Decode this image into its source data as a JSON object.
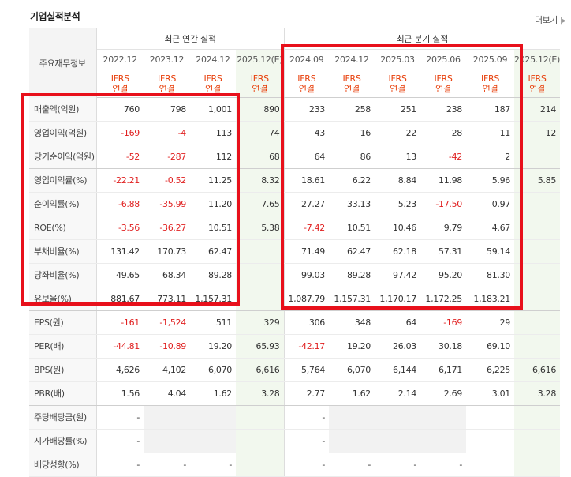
{
  "title": "기업실적분석",
  "more_label": "더보기",
  "more_arrow": "|▸",
  "corner_label": "주요재무정보",
  "group_labels": {
    "annual": "최근 연간 실적",
    "quarter": "최근 분기 실적"
  },
  "periods": [
    "2022.12",
    "2023.12",
    "2024.12",
    "2025.12(E)",
    "2024.09",
    "2024.12",
    "2025.03",
    "2025.06",
    "2025.09",
    "2025.12(E)"
  ],
  "ifrs": [
    "IFRS",
    "IFRS",
    "IFRS",
    "IFRS",
    "IFRS",
    "IFRS",
    "IFRS",
    "IFRS",
    "IFRS",
    "IFRS"
  ],
  "consol": [
    "연결",
    "연결",
    "연결",
    "연결",
    "연결",
    "연결",
    "연결",
    "연결",
    "연결",
    "연결"
  ],
  "rows": [
    {
      "label": "매출액(억원)",
      "cells": [
        "760",
        "798",
        "1,001",
        "890",
        "233",
        "258",
        "251",
        "238",
        "187",
        "214"
      ]
    },
    {
      "label": "영업이익(억원)",
      "cells": [
        "-169",
        "-4",
        "113",
        "74",
        "43",
        "16",
        "22",
        "28",
        "11",
        "12"
      ]
    },
    {
      "label": "당기순이익(억원)",
      "cells": [
        "-52",
        "-287",
        "112",
        "68",
        "64",
        "86",
        "13",
        "-42",
        "2",
        ""
      ]
    },
    {
      "label": "영업이익률(%)",
      "cells": [
        "-22.21",
        "-0.52",
        "11.25",
        "8.32",
        "18.61",
        "6.22",
        "8.84",
        "11.98",
        "5.96",
        "5.85"
      ]
    },
    {
      "label": "순이익률(%)",
      "cells": [
        "-6.88",
        "-35.99",
        "11.20",
        "7.65",
        "27.27",
        "33.13",
        "5.23",
        "-17.50",
        "0.97",
        ""
      ]
    },
    {
      "label": "ROE(%)",
      "cells": [
        "-3.56",
        "-36.27",
        "10.51",
        "5.38",
        "-7.42",
        "10.51",
        "10.46",
        "9.79",
        "4.67",
        ""
      ]
    },
    {
      "label": "부채비율(%)",
      "cells": [
        "131.42",
        "170.73",
        "62.47",
        "",
        "71.49",
        "62.47",
        "62.18",
        "57.31",
        "59.14",
        ""
      ]
    },
    {
      "label": "당좌비율(%)",
      "cells": [
        "49.65",
        "68.34",
        "89.28",
        "",
        "99.03",
        "89.28",
        "97.42",
        "95.20",
        "81.30",
        ""
      ]
    },
    {
      "label": "유보율(%)",
      "cells": [
        "881.67",
        "773.11",
        "1,157.31",
        "",
        "1,087.79",
        "1,157.31",
        "1,170.17",
        "1,172.25",
        "1,183.21",
        ""
      ]
    },
    {
      "label": "EPS(원)",
      "cells": [
        "-161",
        "-1,524",
        "511",
        "329",
        "306",
        "348",
        "64",
        "-169",
        "29",
        ""
      ]
    },
    {
      "label": "PER(배)",
      "cells": [
        "-44.81",
        "-10.89",
        "19.20",
        "65.93",
        "-42.17",
        "19.20",
        "26.03",
        "30.18",
        "69.10",
        ""
      ]
    },
    {
      "label": "BPS(원)",
      "cells": [
        "4,626",
        "4,102",
        "6,070",
        "6,616",
        "5,764",
        "6,070",
        "6,144",
        "6,171",
        "6,225",
        "6,616"
      ]
    },
    {
      "label": "PBR(배)",
      "cells": [
        "1.56",
        "4.04",
        "1.62",
        "3.28",
        "2.77",
        "1.62",
        "2.14",
        "2.69",
        "3.01",
        "3.28"
      ]
    },
    {
      "label": "주당배당금(원)",
      "cells": [
        "-",
        "",
        "",
        "",
        "-",
        "",
        "",
        "",
        "",
        ""
      ]
    },
    {
      "label": "시가배당률(%)",
      "cells": [
        "-",
        "",
        "",
        "",
        "-",
        "",
        "",
        "",
        "",
        ""
      ]
    },
    {
      "label": "배당성향(%)",
      "cells": [
        "-",
        "-",
        "-",
        "",
        "-",
        "-",
        "-",
        "-",
        "",
        ""
      ]
    }
  ],
  "colors": {
    "negative": "#e01f1f",
    "ifrs": "#e8400c",
    "highlight": "#e8101b",
    "estimate_bg": "#f2f8ee"
  }
}
